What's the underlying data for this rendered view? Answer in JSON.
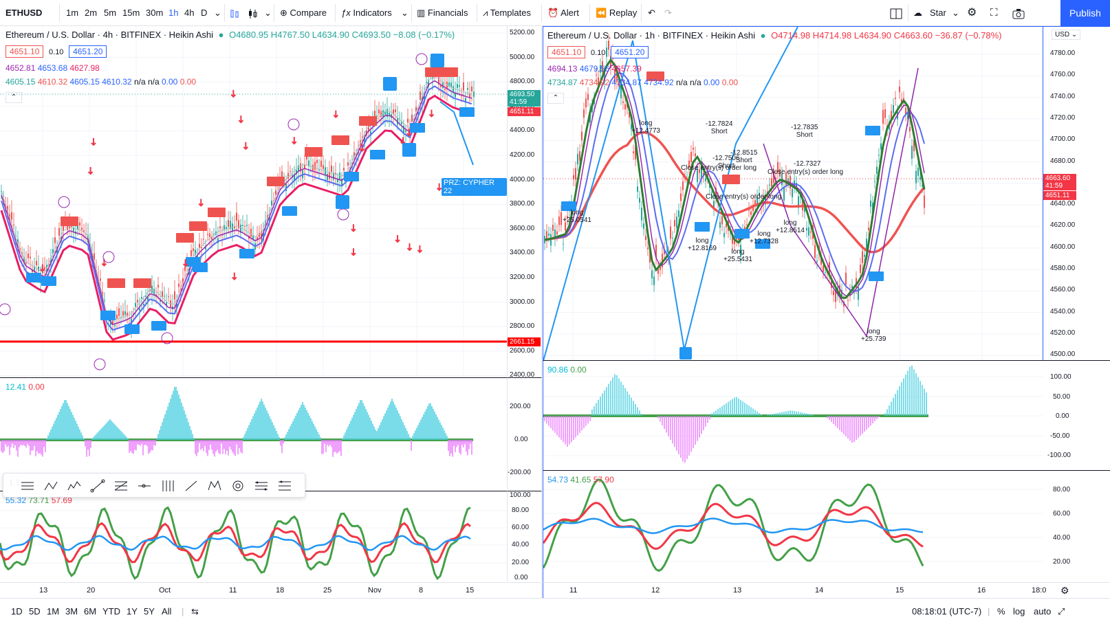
{
  "toolbar": {
    "symbol": "ETHUSD",
    "timeframes": [
      "1m",
      "2m",
      "5m",
      "15m",
      "30m",
      "1h",
      "4h",
      "D"
    ],
    "active_timeframe": "1h",
    "compare": "Compare",
    "indicators": "Indicators",
    "financials": "Financials",
    "templates": "Templates",
    "alert": "Alert",
    "replay": "Replay",
    "layout_name": "Star",
    "publish": "Publish"
  },
  "left_chart": {
    "title": "Ethereum / U.S. Dollar · 4h · BITFINEX · Heikin Ashi",
    "ohlc": "O4680.95 H4767.50 L4634.90 C4693.50 −8.08 (−0.17%)",
    "bid": "4651.10",
    "spread": "0.10",
    "ask": "4651.20",
    "ma_row1": [
      "4652.81",
      "4653.68",
      "4627.98"
    ],
    "ma_row2": [
      "4605.15",
      "4610.32",
      "4605.15",
      "4610.32",
      "n/a",
      "n/a",
      "0.00",
      "0.00"
    ],
    "price_axis": [
      "5200.00",
      "5000.00",
      "4800.00",
      "4600.00",
      "4400.00",
      "4200.00",
      "4000.00",
      "3800.00",
      "3600.00",
      "3400.00",
      "3200.00",
      "3000.00",
      "2800.00",
      "2600.00",
      "2400.00"
    ],
    "last_price_tag": "4693.50",
    "countdown": "41:59",
    "bid_tag": "4651.11",
    "support_tag": "2661.15",
    "prz_label": "PRZ: CYPHER 22",
    "osc1_legend": [
      "12.41",
      "0.00"
    ],
    "osc1_axis": [
      "200.00",
      "0.00",
      "-200.00"
    ],
    "osc2_legend": [
      "55.32",
      "73.71",
      "57.69"
    ],
    "osc2_axis": [
      "100.00",
      "80.00",
      "60.00",
      "40.00",
      "20.00",
      "0.00"
    ],
    "x_axis": [
      "13",
      "20",
      "Oct",
      "11",
      "18",
      "25",
      "Nov",
      "8",
      "15"
    ]
  },
  "right_chart": {
    "title": "Ethereum / U.S. Dollar · 1h · BITFINEX · Heikin Ashi",
    "ohlc": "O4714.98 H4714.98 L4634.90 C4663.60 −36.87 (−0.78%)",
    "bid": "4651.10",
    "spread": "0.10",
    "ask": "4651.20",
    "ma_row1": [
      "4694.13",
      "4679.56",
      "4657.39"
    ],
    "ma_row2": [
      "4734.87",
      "4734.92",
      "4734.87",
      "4734.92",
      "n/a",
      "n/a",
      "0.00",
      "0.00"
    ],
    "currency": "USD",
    "price_axis": [
      "4780.00",
      "4760.00",
      "4740.00",
      "4720.00",
      "4700.00",
      "4680.00",
      "4660.00",
      "4640.00",
      "4620.00",
      "4600.00",
      "4580.00",
      "4560.00",
      "4540.00",
      "4520.00",
      "4500.00"
    ],
    "last_price_tag": "4663.60",
    "countdown": "41:59",
    "bid_tag": "4651.11",
    "osc1_legend": [
      "90.86",
      "0.00"
    ],
    "osc1_axis": [
      "100.00",
      "50.00",
      "0.00",
      "-50.00",
      "-100.00"
    ],
    "osc2_legend": [
      "54.73",
      "41.65",
      "57.90"
    ],
    "osc2_axis": [
      "80.00",
      "60.00",
      "40.00",
      "20.00"
    ],
    "x_axis": [
      "11",
      "12",
      "13",
      "14",
      "15",
      "16",
      "18:0"
    ],
    "annotations": [
      {
        "text": "long",
        "sub": "+12.4773"
      },
      {
        "text": "-12.7824",
        "sub": "Short"
      },
      {
        "text": "-12.7506",
        "sub": "Short"
      },
      {
        "text": "-12.8515",
        "sub": "Short"
      },
      {
        "text": "-12.7835",
        "sub": "Short"
      },
      {
        "text": "-12.7327",
        "sub": ""
      },
      {
        "text": "Close entry(s) order long",
        "sub": ""
      },
      {
        "text": "Close entry(s) order long",
        "sub": ""
      },
      {
        "text": "Close entry(s) order long",
        "sub": ""
      },
      {
        "text": "long",
        "sub": "+25.0541"
      },
      {
        "text": "long",
        "sub": "+12.8169"
      },
      {
        "text": "long",
        "sub": "+25.5431"
      },
      {
        "text": "long",
        "sub": "+12.7328"
      },
      {
        "text": "long",
        "sub": "+12.8514"
      },
      {
        "text": "long",
        "sub": "+25.739"
      }
    ]
  },
  "bottombar": {
    "ranges": [
      "1D",
      "5D",
      "1M",
      "3M",
      "6M",
      "YTD",
      "1Y",
      "5Y",
      "All"
    ],
    "time": "08:18:01 (UTC-7)",
    "percent": "%",
    "log": "log",
    "auto": "auto"
  },
  "colors": {
    "accent": "#2962ff",
    "up": "#26a69a",
    "down": "#ef5350",
    "support": "#ff0000",
    "ma_pink": "#e91e63",
    "ma_blue": "#5b6cf0",
    "cyan": "#00e5ff",
    "magenta": "#e040fb"
  }
}
